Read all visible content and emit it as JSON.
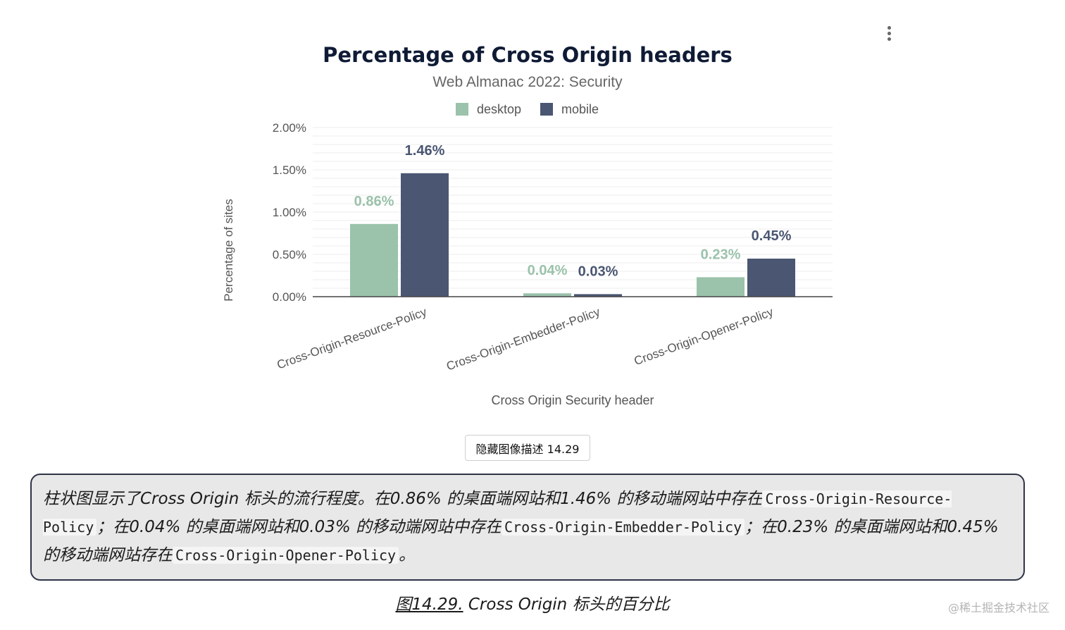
{
  "chart_data": {
    "type": "bar",
    "title": "Percentage of Cross Origin headers",
    "subtitle": "Web Almanac 2022: Security",
    "xlabel": "Cross Origin Security header",
    "ylabel": "Percentage of sites",
    "categories": [
      "Cross-Origin-Resource-Policy",
      "Cross-Origin-Embedder-Policy",
      "Cross-Origin-Opener-Policy"
    ],
    "series": [
      {
        "name": "desktop",
        "values": [
          0.86,
          0.04,
          0.23
        ],
        "labels": [
          "0.86%",
          "0.04%",
          "0.23%"
        ],
        "color": "#9bc2ab"
      },
      {
        "name": "mobile",
        "values": [
          1.46,
          0.03,
          0.45
        ],
        "labels": [
          "1.46%",
          "0.03%",
          "0.45%"
        ],
        "color": "#4a5672"
      }
    ],
    "ylim": [
      0,
      2
    ],
    "yticks": [
      0,
      0.5,
      1,
      1.5,
      2
    ],
    "ytick_labels": [
      "0.00%",
      "0.50%",
      "1.00%",
      "1.50%",
      "2.00%"
    ],
    "legend_position": "top-center",
    "grid": true
  },
  "menu_icon": "more-vertical-icon",
  "toggle_button_label": "隐藏图像描述 14.29",
  "description": {
    "p1": "柱状图显示了Cross Origin 标头的流行程度。在0.86% 的桌面端网站和1.46% 的移动端网站中存在",
    "code1": "Cross-Origin-Resource-Policy",
    "p2": "；在0.04% 的桌面端网站和0.03% 的移动端网站中存在",
    "code2": "Cross-Origin-Embedder-Policy",
    "p3": "；在0.23% 的桌面端网站和0.45% 的移动端网站存在",
    "code3": "Cross-Origin-Opener-Policy",
    "p4": "。"
  },
  "caption": {
    "figure_number": "图14.29.",
    "text": "Cross Origin 标头的百分比"
  },
  "watermark": "@稀土掘金技术社区",
  "colors": {
    "title": "#0f1b35",
    "desktop": "#9bc2ab",
    "mobile": "#4a5672",
    "description_border": "#2e3347",
    "description_bg": "#e8e8e8"
  }
}
